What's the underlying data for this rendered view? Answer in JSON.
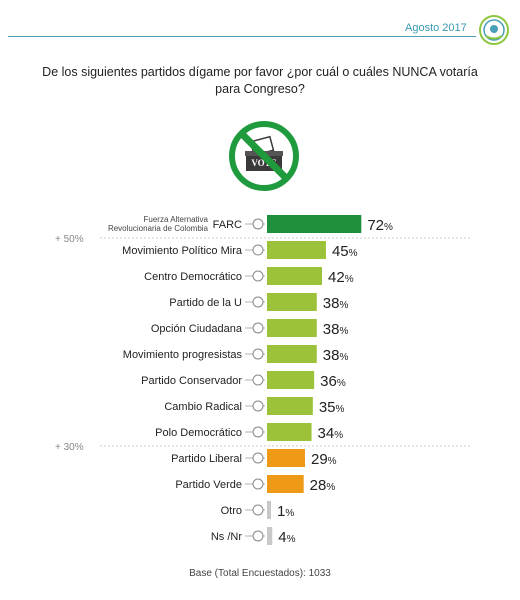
{
  "header": {
    "date": "Agosto 2017"
  },
  "question": "De los siguientes partidos dígame por favor ¿por cuál o cuáles  NUNCA votaría para Congreso?",
  "icon": {
    "name": "no-vote-icon",
    "text": "VOTE",
    "color": "#1f9a3c"
  },
  "footer": {
    "base_label": "Base (Total Encuestados):",
    "base_value": "1033"
  },
  "colors": {
    "top": "#1e8f3a",
    "mid": "#9cc23a",
    "low": "#ee9a17",
    "none": "#c8c8c8"
  },
  "chart_data": {
    "type": "bar",
    "orientation": "horizontal",
    "categories": [
      "FARC",
      "Movimiento Político Mira",
      "Centro Democrático",
      "Partido de la U",
      "Opción Ciudadana",
      "Movimiento progresistas",
      "Partido Conservador",
      "Cambio Radical",
      "Polo Democrático",
      "Partido Liberal",
      "Partido Verde",
      "Otro",
      "Ns /Nr"
    ],
    "first_category_note": [
      "Fuerza Alternativa",
      "Revolucionaria de Colombia"
    ],
    "values": [
      72,
      45,
      42,
      38,
      38,
      38,
      36,
      35,
      34,
      29,
      28,
      1,
      4
    ],
    "color_groups": [
      "top",
      "mid",
      "mid",
      "mid",
      "mid",
      "mid",
      "mid",
      "mid",
      "mid",
      "low",
      "low",
      "none",
      "none"
    ],
    "unit": "%",
    "thresholds": [
      {
        "label": "+ 50%",
        "after_index": 0
      },
      {
        "label": "+ 30%",
        "after_index": 8
      }
    ]
  }
}
